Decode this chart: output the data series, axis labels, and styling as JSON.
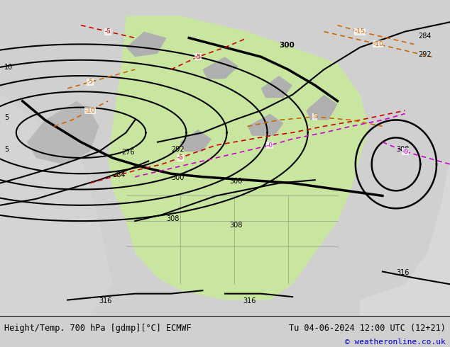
{
  "title_left": "Height/Temp. 700 hPa [gdmp][°C] ECMWF",
  "title_right": "Tu 04-06-2024 12:00 UTC (12+21)",
  "copyright": "© weatheronline.co.uk",
  "bg_color": "#d8d8d8",
  "land_green_color": "#c8e6a0",
  "land_gray_color": "#c8c8c8",
  "ocean_color": "#e8e8e8",
  "contour_height_color": "#000000",
  "contour_temp_neg_color": "#cc0000",
  "contour_temp_zero_color": "#cc00cc",
  "contour_temp_pos_color": "#cc6600",
  "footer_bg": "#ffffff",
  "footer_text_color": "#000000",
  "copyright_color": "#0000cc"
}
